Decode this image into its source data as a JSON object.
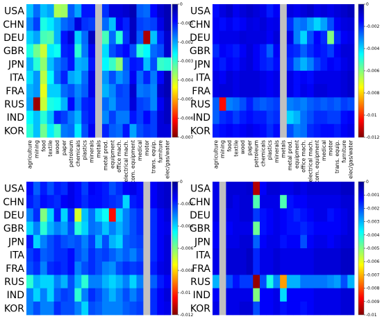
{
  "countries": [
    "USA",
    "CHN",
    "DEU",
    "GBR",
    "JPN",
    "ITA",
    "FRA",
    "RUS",
    "IND",
    "KOR"
  ],
  "sectors": [
    "agriculture",
    "mining",
    "food",
    "textile",
    "wood",
    "paper",
    "petroleum",
    "chemicals",
    "plastics",
    "minerals",
    "metals",
    "metal prod.",
    "equipment",
    "office mach.",
    "electrical mach.",
    "com. equipment",
    "medical",
    "motor",
    "trans. equip.",
    "furniture",
    "elec/gas/water"
  ],
  "colors": {
    "scale": [
      "#00008f",
      "#0000ff",
      "#0080ff",
      "#00ffff",
      "#80ff80",
      "#ffff00",
      "#ff8000",
      "#ff0000",
      "#800000"
    ],
    "missing": "#c0c0c0"
  },
  "chart_data": [
    {
      "type": "heatmap",
      "colorbar": {
        "min": -0.007,
        "max": 0,
        "ticks": [
          "0",
          "-0.001",
          "-0.002",
          "-0.003",
          "-0.004",
          "-0.005",
          "-0.006",
          "-0.007"
        ]
      },
      "missing_column": "metals",
      "x_labels_shown": true,
      "values": [
        [
          -0.0022,
          -0.0016,
          -0.0022,
          -0.002,
          -0.0038,
          -0.0037,
          -0.0015,
          -0.002,
          -0.001,
          -0.001,
          null,
          -0.0012,
          -0.0006,
          -0.0006,
          -0.0005,
          -0.0003,
          -0.0015,
          -0.0016,
          -0.0009,
          -0.0005,
          -0.0003
        ],
        [
          -0.0018,
          -0.0013,
          -0.0028,
          -0.0025,
          -0.0021,
          -0.0016,
          -0.0014,
          -0.0006,
          -0.0012,
          -0.0013,
          null,
          -0.0016,
          -0.0022,
          -0.0008,
          -0.0011,
          -0.0004,
          -0.0013,
          -0.0014,
          -0.0013,
          -0.0007,
          -0.0003
        ],
        [
          -0.0023,
          -0.002,
          -0.0031,
          -0.0032,
          -0.0021,
          -0.001,
          -0.0006,
          -0.0023,
          -0.0016,
          -0.0004,
          null,
          -0.0031,
          -0.0016,
          -0.0029,
          -0.0012,
          -0.0004,
          -0.0015,
          -0.0067,
          -0.0022,
          -0.0011,
          -0.0005
        ],
        [
          -0.0028,
          -0.0034,
          -0.004,
          -0.0025,
          -0.0027,
          -0.0011,
          -0.001,
          -0.0029,
          -0.0017,
          -0.0008,
          null,
          -0.0024,
          -0.0014,
          -0.0011,
          -0.0009,
          -0.0014,
          -0.0029,
          -0.0026,
          -0.0016,
          -0.0014,
          -0.0005
        ],
        [
          -0.0021,
          -0.0029,
          -0.0036,
          -0.0022,
          -0.0017,
          -0.0014,
          -0.001,
          -0.0021,
          -0.002,
          -0.001,
          null,
          -0.0026,
          -0.003,
          -0.0036,
          -0.0015,
          -0.001,
          -0.0011,
          -0.0022,
          -0.0014,
          -0.003,
          -0.0029
        ],
        [
          -0.0024,
          -0.0019,
          -0.0039,
          -0.0026,
          -0.0016,
          -0.0011,
          -0.002,
          -0.0022,
          -0.0016,
          -0.0007,
          null,
          -0.0019,
          -0.0014,
          -0.0019,
          -0.0016,
          -0.0008,
          -0.0016,
          -0.0011,
          -0.0017,
          -0.0009,
          -0.0003
        ],
        [
          -0.0021,
          -0.0019,
          -0.0042,
          -0.0023,
          -0.0023,
          -0.0016,
          -0.0014,
          -0.0018,
          -0.0015,
          -0.0007,
          null,
          -0.0021,
          -0.0018,
          -0.0013,
          -0.0014,
          -0.0005,
          -0.0017,
          -0.0016,
          -0.0018,
          -0.0005,
          -0.0003
        ],
        [
          -0.002,
          -0.0068,
          -0.004,
          -0.0028,
          -0.0027,
          -0.0021,
          -0.0009,
          -0.0017,
          -0.0011,
          -0.001,
          null,
          -0.0016,
          -0.0019,
          -0.0014,
          -0.0014,
          -0.0006,
          -0.0013,
          -0.0014,
          -0.0018,
          -0.0008,
          -0.0004
        ],
        [
          -0.0026,
          -0.0022,
          -0.0029,
          -0.0022,
          -0.0011,
          -0.0013,
          -0.0017,
          -0.0021,
          -0.0012,
          -0.001,
          null,
          -0.0018,
          -0.0013,
          -0.0017,
          -0.0017,
          -0.001,
          -0.0013,
          -0.0009,
          -0.0013,
          -0.0006,
          -0.0004
        ],
        [
          -0.0029,
          -0.0022,
          -0.0034,
          -0.0025,
          -0.003,
          -0.0017,
          -0.0016,
          -0.0025,
          -0.0014,
          -0.0008,
          null,
          -0.0011,
          -0.0015,
          -0.0016,
          -0.001,
          -0.002,
          -0.0014,
          -0.0012,
          -0.0013,
          -0.0006,
          -0.0006
        ]
      ]
    },
    {
      "type": "heatmap",
      "colorbar": {
        "min": -0.012,
        "max": 0,
        "ticks": [
          "0",
          "-0.002",
          "-0.004",
          "-0.006",
          "-0.008",
          "-0.01",
          "-0.012"
        ]
      },
      "missing_column": "metals",
      "x_labels_shown": true,
      "values": [
        [
          -0.0016,
          -0.0011,
          -0.0008,
          -0.0013,
          -0.001,
          -0.0008,
          -0.001,
          -0.0012,
          -0.0018,
          -0.0014,
          null,
          -0.0011,
          -0.0013,
          -0.001,
          -0.0008,
          -0.0012,
          -0.001,
          -0.0012,
          -0.001,
          -0.0008,
          -0.0006
        ],
        [
          -0.0014,
          -0.0016,
          -0.0013,
          -0.0016,
          -0.0014,
          -0.0011,
          -0.0012,
          -0.001,
          -0.0013,
          -0.0012,
          null,
          -0.002,
          -0.003,
          -0.0028,
          -0.0034,
          -0.004,
          -0.0034,
          -0.0024,
          -0.0014,
          -0.0011,
          -0.001
        ],
        [
          -0.0014,
          -0.0012,
          -0.0012,
          -0.0012,
          -0.001,
          -0.0011,
          -0.0011,
          -0.0011,
          -0.0014,
          -0.001,
          null,
          -0.0012,
          -0.003,
          -0.004,
          -0.0024,
          -0.0015,
          -0.002,
          -0.006,
          -0.002,
          -0.0014,
          -0.0012
        ],
        [
          -0.002,
          -0.0014,
          -0.0016,
          -0.0018,
          -0.0014,
          -0.001,
          -0.0014,
          -0.0018,
          -0.0026,
          -0.0014,
          null,
          -0.0018,
          -0.002,
          -0.0026,
          -0.002,
          -0.0016,
          -0.0018,
          -0.0022,
          -0.0014,
          -0.001,
          -0.001
        ],
        [
          -0.0016,
          -0.0018,
          -0.0014,
          -0.0016,
          -0.0012,
          -0.001,
          -0.0014,
          -0.0018,
          -0.002,
          -0.0016,
          null,
          -0.002,
          -0.003,
          -0.0036,
          -0.003,
          -0.0022,
          -0.0018,
          -0.0014,
          -0.0016,
          -0.0012,
          -0.001
        ],
        [
          -0.0012,
          -0.0014,
          -0.001,
          -0.0012,
          -0.001,
          -0.001,
          -0.001,
          -0.0012,
          -0.0014,
          -0.0012,
          null,
          -0.0012,
          -0.0016,
          -0.0014,
          -0.0016,
          -0.0012,
          -0.0012,
          -0.0012,
          -0.0012,
          -0.001,
          -0.0008
        ],
        [
          -0.0012,
          -0.001,
          -0.001,
          -0.0012,
          -0.001,
          -0.001,
          -0.001,
          -0.0012,
          -0.0014,
          -0.0012,
          null,
          -0.0012,
          -0.0016,
          -0.0012,
          -0.0014,
          -0.001,
          -0.001,
          -0.0012,
          -0.0012,
          -0.001,
          -0.0008
        ],
        [
          -0.0026,
          -0.0104,
          -0.003,
          -0.0028,
          -0.0024,
          -0.0018,
          -0.0024,
          -0.0026,
          -0.0024,
          -0.0022,
          null,
          -0.003,
          -0.0028,
          -0.003,
          -0.0026,
          -0.0024,
          -0.0026,
          -0.0024,
          -0.0026,
          -0.0022,
          -0.0024
        ],
        [
          -0.0026,
          -0.002,
          -0.0018,
          -0.0022,
          -0.0018,
          -0.0016,
          -0.0018,
          -0.0018,
          -0.0022,
          -0.002,
          null,
          -0.004,
          -0.0036,
          -0.0028,
          -0.0024,
          -0.002,
          -0.002,
          -0.0022,
          -0.0022,
          -0.0016,
          -0.0014
        ],
        [
          -0.0018,
          -0.0016,
          -0.0014,
          -0.0016,
          -0.0014,
          -0.0012,
          -0.0014,
          -0.0016,
          -0.002,
          -0.0016,
          null,
          -0.0024,
          -0.003,
          -0.0028,
          -0.002,
          -0.0018,
          -0.0016,
          -0.0016,
          -0.0018,
          -0.0014,
          -0.0012
        ]
      ]
    },
    {
      "type": "heatmap",
      "colorbar": {
        "min": -0.012,
        "max": 0,
        "ticks": [
          "0",
          "-0.002",
          "-0.004",
          "-0.006",
          "-0.008",
          "-0.01",
          "-0.012"
        ]
      },
      "missing_column": "motor",
      "x_labels_shown": false,
      "values": [
        [
          -0.0016,
          -0.0026,
          -0.0018,
          -0.0024,
          -0.0018,
          -0.002,
          -0.0012,
          -0.0016,
          -0.0022,
          -0.0014,
          -0.0016,
          -0.0018,
          -0.0024,
          -0.002,
          -0.0014,
          -0.0012,
          -0.0016,
          null,
          -0.0014,
          -0.001,
          -0.0008
        ],
        [
          -0.0018,
          -0.0022,
          -0.0016,
          -0.0018,
          -0.002,
          -0.0014,
          -0.0012,
          -0.0016,
          -0.002,
          -0.0016,
          -0.0016,
          -0.0018,
          -0.002,
          -0.0022,
          -0.004,
          -0.0018,
          -0.0016,
          null,
          -0.0014,
          -0.001,
          -0.0008
        ],
        [
          -0.003,
          -0.002,
          -0.006,
          -0.004,
          -0.0018,
          -0.004,
          -0.002,
          -0.007,
          -0.0038,
          -0.0028,
          -0.004,
          -0.0046,
          -0.0104,
          -0.004,
          -0.003,
          -0.0024,
          -0.002,
          null,
          -0.002,
          -0.0014,
          -0.001
        ],
        [
          -0.004,
          -0.003,
          -0.005,
          -0.0036,
          -0.003,
          -0.0034,
          -0.0024,
          -0.005,
          -0.004,
          -0.0028,
          -0.003,
          -0.0038,
          -0.003,
          -0.0036,
          -0.003,
          -0.0024,
          -0.002,
          null,
          -0.002,
          -0.0014,
          -0.0012
        ],
        [
          -0.0018,
          -0.004,
          -0.003,
          -0.0024,
          -0.002,
          -0.0024,
          -0.0026,
          -0.0024,
          -0.003,
          -0.0022,
          -0.0036,
          -0.0024,
          -0.0036,
          -0.004,
          -0.0026,
          -0.0024,
          -0.0022,
          null,
          -0.002,
          -0.0014,
          -0.001
        ],
        [
          -0.0022,
          -0.0018,
          -0.0026,
          -0.0024,
          -0.002,
          -0.002,
          -0.0016,
          -0.0024,
          -0.0028,
          -0.002,
          -0.0024,
          -0.0022,
          -0.0026,
          -0.003,
          -0.0026,
          -0.003,
          -0.0024,
          null,
          -0.002,
          -0.0014,
          -0.001
        ],
        [
          -0.0024,
          -0.002,
          -0.003,
          -0.002,
          -0.0018,
          -0.002,
          -0.0016,
          -0.003,
          -0.0024,
          -0.002,
          -0.0024,
          -0.003,
          -0.0032,
          -0.0024,
          -0.002,
          -0.0022,
          -0.002,
          null,
          -0.0018,
          -0.0012,
          -0.001
        ],
        [
          -0.005,
          -0.0036,
          -0.004,
          -0.004,
          -0.003,
          -0.0036,
          -0.0024,
          -0.0036,
          -0.005,
          -0.003,
          -0.003,
          -0.0036,
          -0.004,
          -0.0036,
          -0.003,
          -0.004,
          -0.003,
          null,
          -0.0026,
          -0.0018,
          -0.0014
        ],
        [
          -0.003,
          -0.004,
          -0.003,
          -0.004,
          -0.0026,
          -0.0022,
          -0.0024,
          -0.005,
          -0.003,
          -0.002,
          -0.0024,
          -0.003,
          -0.0036,
          -0.003,
          -0.0024,
          -0.003,
          -0.0024,
          null,
          -0.002,
          -0.0014,
          -0.001
        ],
        [
          -0.003,
          -0.0024,
          -0.003,
          -0.003,
          -0.002,
          -0.0024,
          -0.0024,
          -0.003,
          -0.004,
          -0.0024,
          -0.0026,
          -0.003,
          -0.003,
          -0.003,
          -0.0026,
          -0.0024,
          -0.0022,
          null,
          -0.002,
          -0.0014,
          -0.0012
        ]
      ]
    },
    {
      "type": "heatmap",
      "colorbar": {
        "min": -0.01,
        "max": 0,
        "ticks": [
          "0",
          "-0.001",
          "-0.002",
          "-0.003",
          "-0.004",
          "-0.005",
          "-0.006",
          "-0.007",
          "-0.008",
          "-0.009",
          "-0.01"
        ]
      },
      "missing_column": "mining",
      "x_labels_shown": false,
      "values": [
        [
          -0.001,
          null,
          -0.0008,
          -0.0008,
          -0.0008,
          -0.0007,
          -0.0095,
          -0.0012,
          -0.0008,
          -0.0008,
          -0.001,
          -0.001,
          -0.0008,
          -0.001,
          -0.0008,
          -0.0008,
          -0.0008,
          -0.0008,
          -0.0008,
          -0.0006,
          -0.0006
        ],
        [
          -0.001,
          null,
          -0.0008,
          -0.001,
          -0.0008,
          -0.0008,
          -0.0045,
          -0.001,
          -0.001,
          -0.001,
          -0.0045,
          -0.0014,
          -0.0012,
          -0.0012,
          -0.001,
          -0.001,
          -0.001,
          -0.001,
          -0.001,
          -0.0008,
          -0.0008
        ],
        [
          -0.001,
          null,
          -0.001,
          -0.001,
          -0.0008,
          -0.0008,
          -0.0018,
          -0.0014,
          -0.0012,
          -0.001,
          -0.0012,
          -0.0014,
          -0.0016,
          -0.0014,
          -0.0012,
          -0.001,
          -0.001,
          -0.0014,
          -0.0012,
          -0.001,
          -0.0008
        ],
        [
          -0.0012,
          null,
          -0.0012,
          -0.001,
          -0.001,
          -0.001,
          -0.0048,
          -0.0014,
          -0.0012,
          -0.001,
          -0.0012,
          -0.0014,
          -0.0014,
          -0.0016,
          -0.0014,
          -0.0012,
          -0.0012,
          -0.0012,
          -0.0012,
          -0.001,
          -0.0008
        ],
        [
          -0.0012,
          null,
          -0.001,
          -0.001,
          -0.0008,
          -0.0008,
          -0.0022,
          -0.0012,
          -0.001,
          -0.001,
          -0.0014,
          -0.0012,
          -0.0012,
          -0.002,
          -0.0012,
          -0.001,
          -0.001,
          -0.0012,
          -0.001,
          -0.0008,
          -0.0008
        ],
        [
          -0.001,
          null,
          -0.0008,
          -0.0008,
          -0.0008,
          -0.0006,
          -0.0016,
          -0.001,
          -0.001,
          -0.0008,
          -0.001,
          -0.001,
          -0.001,
          -0.001,
          -0.001,
          -0.0008,
          -0.0008,
          -0.0008,
          -0.0008,
          -0.0006,
          -0.0006
        ],
        [
          -0.001,
          null,
          -0.0008,
          -0.0008,
          -0.0008,
          -0.0006,
          -0.0016,
          -0.001,
          -0.001,
          -0.0008,
          -0.001,
          -0.001,
          -0.001,
          -0.001,
          -0.001,
          -0.0008,
          -0.0008,
          -0.0008,
          -0.0008,
          -0.0006,
          -0.0006
        ],
        [
          -0.003,
          null,
          -0.002,
          -0.0014,
          -0.0018,
          -0.0018,
          -0.0098,
          -0.002,
          -0.004,
          -0.0026,
          -0.0072,
          -0.003,
          -0.003,
          -0.0024,
          -0.0024,
          -0.0024,
          -0.0024,
          -0.0026,
          -0.0028,
          -0.002,
          -0.003
        ],
        [
          -0.0012,
          null,
          -0.001,
          -0.001,
          -0.001,
          -0.001,
          -0.005,
          -0.0012,
          -0.0012,
          -0.001,
          -0.0034,
          -0.0012,
          -0.0012,
          -0.0012,
          -0.0012,
          -0.001,
          -0.001,
          -0.001,
          -0.001,
          -0.0008,
          -0.0008
        ],
        [
          -0.001,
          null,
          -0.001,
          -0.001,
          -0.0008,
          -0.0008,
          -0.002,
          -0.0012,
          -0.0012,
          -0.001,
          -0.0014,
          -0.0012,
          -0.0012,
          -0.0014,
          -0.0012,
          -0.001,
          -0.001,
          -0.001,
          -0.001,
          -0.0008,
          -0.0008
        ]
      ]
    }
  ]
}
